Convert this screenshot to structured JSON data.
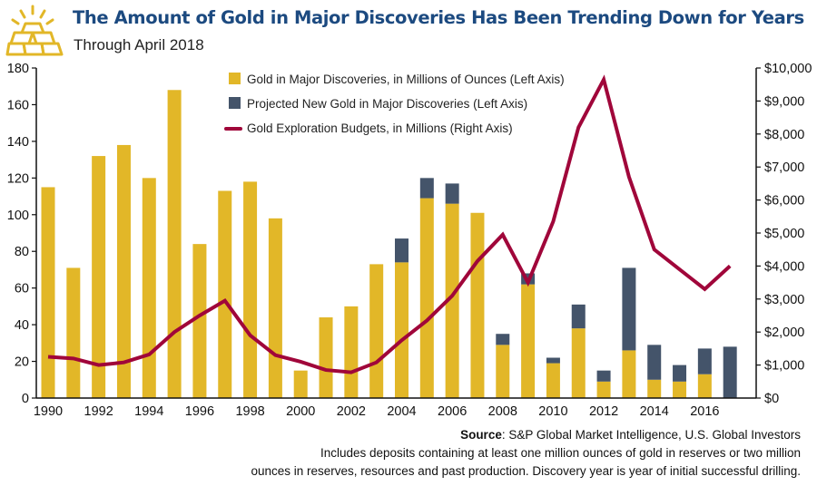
{
  "header": {
    "title": "The Amount of Gold in Major Discoveries Has Been Trending Down for Years",
    "subtitle": "Through April 2018",
    "logo_icon": "gold-bars-icon"
  },
  "footer": {
    "source_label": "Source",
    "source_text": ": S&P Global Market Intelligence, U.S. Global Investors",
    "note_line1": "Includes deposits containing at least one million ounces of gold in reserves or two million",
    "note_line2": "ounces in reserves, resources and past production. Discovery year is year of initial successful drilling."
  },
  "colors": {
    "gold": "#e2b728",
    "projected": "#44546a",
    "line": "#a0063a",
    "title": "#1c4a80"
  },
  "chart_data": {
    "type": "bar",
    "title": "The Amount of Gold in Major Discoveries Has Been Trending Down for Years",
    "subtitle": "Through April 2018",
    "categories": [
      1990,
      1991,
      1992,
      1993,
      1994,
      1995,
      1996,
      1997,
      1998,
      1999,
      2000,
      2001,
      2002,
      2003,
      2004,
      2005,
      2006,
      2007,
      2008,
      2009,
      2010,
      2011,
      2012,
      2013,
      2014,
      2015,
      2016,
      2017
    ],
    "x_tick_labels": [
      "1990",
      "1992",
      "1994",
      "1996",
      "1998",
      "2000",
      "2002",
      "2004",
      "2006",
      "2008",
      "2010",
      "2012",
      "2014",
      "2016"
    ],
    "series": [
      {
        "name": "Gold in Major Discoveries, in Millions of Ounces (Left Axis)",
        "type": "bar",
        "stack": "discoveries",
        "axis": "left",
        "values": [
          115,
          71,
          132,
          138,
          120,
          168,
          84,
          113,
          118,
          98,
          15,
          44,
          50,
          73,
          74,
          109,
          106,
          101,
          29,
          62,
          19,
          38,
          9,
          26,
          10,
          9,
          13,
          0
        ]
      },
      {
        "name": "Projected New Gold in Major Discoveries (Left Axis)",
        "type": "bar",
        "stack": "discoveries",
        "axis": "left",
        "values": [
          0,
          0,
          0,
          0,
          0,
          0,
          0,
          0,
          0,
          0,
          0,
          0,
          0,
          0,
          13,
          11,
          11,
          0,
          6,
          6,
          3,
          13,
          6,
          45,
          19,
          9,
          14,
          28
        ]
      },
      {
        "name": "Gold Exploration Budgets, in Millions (Right Axis)",
        "type": "line",
        "axis": "right",
        "values": [
          1250,
          1200,
          1000,
          1080,
          1320,
          2000,
          2500,
          2950,
          1900,
          1300,
          1100,
          850,
          780,
          1080,
          1750,
          2350,
          3100,
          4150,
          4950,
          3500,
          5350,
          8200,
          9650,
          6700,
          4500,
          3900,
          3300,
          4000
        ]
      }
    ],
    "left_axis": {
      "label": "",
      "min": 0,
      "max": 180,
      "ticks": [
        "0",
        "20",
        "40",
        "60",
        "80",
        "100",
        "120",
        "140",
        "160",
        "180"
      ]
    },
    "right_axis": {
      "label": "",
      "min": 0,
      "max": 10000,
      "ticks": [
        "$0",
        "$1,000",
        "$2,000",
        "$3,000",
        "$4,000",
        "$5,000",
        "$6,000",
        "$7,000",
        "$8,000",
        "$9,000",
        "$10,000"
      ]
    },
    "grid": false,
    "legend_position": "top-center"
  }
}
